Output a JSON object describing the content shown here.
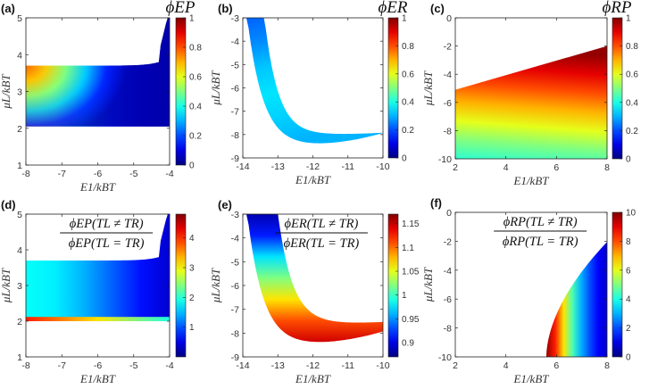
{
  "chart_data": [
    {
      "type": "heatmap",
      "panel_label": "(a)",
      "title": "ϕEP",
      "xlabel": "E1/kBT",
      "ylabel": "μL/kBT",
      "xlim": [
        -8,
        -4
      ],
      "ylim": [
        1,
        5
      ],
      "xticks": [
        "-8",
        "-7",
        "-6",
        "-5",
        "-4"
      ],
      "yticks": [
        "1",
        "2",
        "3",
        "4",
        "5"
      ],
      "colorbar": {
        "ticks": [
          "0",
          "0.2",
          "0.4",
          "0.6",
          "0.8",
          "1"
        ],
        "range": [
          0,
          1
        ],
        "colormap": "jet"
      },
      "region": {
        "y_bottom": 2.05,
        "y_top_left": 3.7,
        "boundary_cusp_x": -4.0
      },
      "peak": {
        "x": -8.0,
        "y": 3.4,
        "value": 0.75
      }
    },
    {
      "type": "heatmap",
      "panel_label": "(b)",
      "title": "ϕER",
      "xlabel": "E1/kBT",
      "ylabel": "μL/kBT",
      "xlim": [
        -14,
        -10
      ],
      "ylim": [
        -9,
        -3
      ],
      "xticks": [
        "-14",
        "-13",
        "-12",
        "-11",
        "-10"
      ],
      "yticks": [
        "-9",
        "-8",
        "-7",
        "-6",
        "-5",
        "-4",
        "-3"
      ],
      "colorbar": {
        "ticks": [
          "0",
          "0.2",
          "0.4",
          "0.6",
          "0.8",
          "1"
        ],
        "range": [
          0,
          1
        ],
        "colormap": "jet"
      },
      "region_note": "U-shaped band, minimum near (-12.5, -8.4), values 0 to 0.35"
    },
    {
      "type": "heatmap",
      "panel_label": "(c)",
      "title": "ϕRP",
      "xlabel": "E1/kBT",
      "ylabel": "μL/kBT",
      "xlim": [
        2,
        8
      ],
      "ylim": [
        -10,
        0
      ],
      "xticks": [
        "2",
        "4",
        "6",
        "8"
      ],
      "yticks": [
        "-10",
        "-8",
        "-6",
        "-4",
        "-2",
        "0"
      ],
      "colorbar": {
        "ticks": [
          "0",
          "0.2",
          "0.4",
          "0.6",
          "0.8",
          "1"
        ],
        "range": [
          0,
          1
        ],
        "colormap": "jet"
      },
      "region": {
        "upper_boundary": [
          [
            2,
            -5.1
          ],
          [
            8,
            -2.0
          ]
        ]
      },
      "value_range": [
        0.4,
        1.0
      ]
    },
    {
      "type": "heatmap",
      "panel_label": "(d)",
      "title_num": "ϕEP(TL ≠ TR)",
      "title_den": "ϕEP(TL = TR)",
      "xlabel": "E1/kBT",
      "ylabel": "μL/kBT",
      "xlim": [
        -8,
        -4
      ],
      "ylim": [
        1,
        5
      ],
      "xticks": [
        "-8",
        "-7",
        "-6",
        "-5",
        "-4"
      ],
      "yticks": [
        "1",
        "2",
        "3",
        "4",
        "5"
      ],
      "colorbar": {
        "ticks": [
          "1",
          "2",
          "3",
          "4"
        ],
        "range": [
          0,
          4.8
        ],
        "colormap": "jet"
      },
      "value_range": [
        0.2,
        4.5
      ]
    },
    {
      "type": "heatmap",
      "panel_label": "(e)",
      "title_num": "ϕER(TL ≠ TR)",
      "title_den": "ϕER(TL = TR)",
      "xlabel": "E1/kBT",
      "ylabel": "μL/kBT",
      "xlim": [
        -14,
        -10
      ],
      "ylim": [
        -9,
        -3
      ],
      "xticks": [
        "-14",
        "-13",
        "-12",
        "-11",
        "-10"
      ],
      "yticks": [
        "-9",
        "-8",
        "-7",
        "-6",
        "-5",
        "-4",
        "-3"
      ],
      "colorbar": {
        "ticks": [
          "0.9",
          "0.95",
          "1",
          "1.05",
          "1.1",
          "1.15"
        ],
        "range": [
          0.87,
          1.17
        ],
        "colormap": "jet"
      },
      "value_range": [
        0.87,
        1.17
      ]
    },
    {
      "type": "heatmap",
      "panel_label": "(f)",
      "title_num": "ϕRP(TL ≠ TR)",
      "title_den": "ϕRP(TL = TR)",
      "xlabel": "E1/kBT",
      "ylabel": "μL/kBT",
      "xlim": [
        2,
        8
      ],
      "ylim": [
        -10,
        0
      ],
      "xticks": [
        "2",
        "4",
        "6",
        "8"
      ],
      "yticks": [
        "-10",
        "-8",
        "-6",
        "-4",
        "-2",
        "0"
      ],
      "colorbar": {
        "ticks": [
          "0",
          "2",
          "4",
          "6",
          "8",
          "10"
        ],
        "range": [
          0,
          10
        ],
        "colormap": "jet"
      },
      "value_range": [
        0,
        10
      ]
    }
  ],
  "colors": {
    "axis": "#333333",
    "frame": "#222222"
  }
}
